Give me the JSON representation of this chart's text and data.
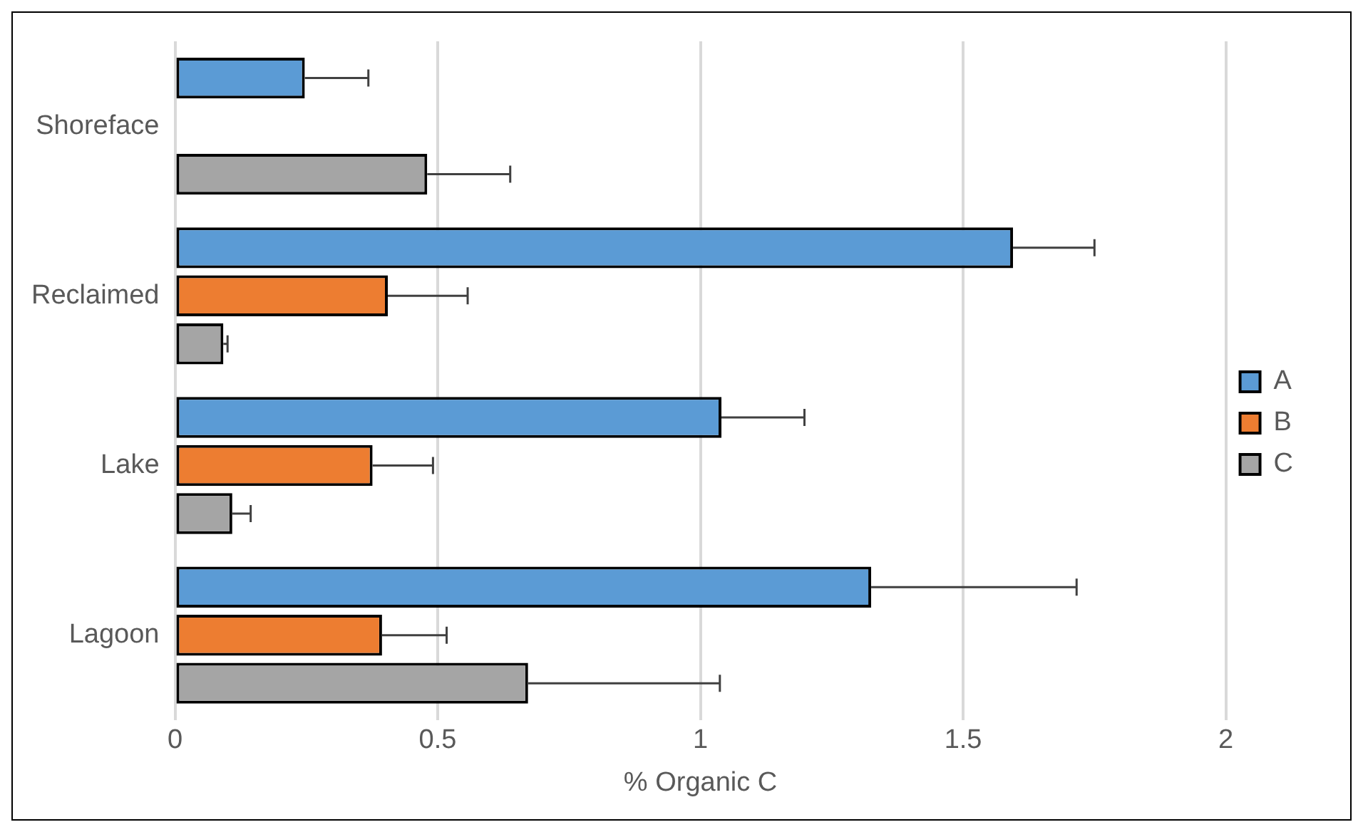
{
  "chart_data": {
    "type": "bar",
    "orientation": "horizontal",
    "xlabel": "% Organic C",
    "categories": [
      "Shoreface",
      "Reclaimed",
      "Lake",
      "Lagoon"
    ],
    "series": [
      {
        "name": "A",
        "color": "#5b9bd5",
        "values": [
          0.247,
          1.595,
          1.04,
          1.325
        ],
        "errors": [
          [
            0.247,
            0.368
          ],
          [
            1.595,
            1.75
          ],
          [
            1.04,
            1.198
          ],
          [
            1.325,
            1.716
          ]
        ]
      },
      {
        "name": "B",
        "color": "#ed7d31",
        "values": [
          null,
          0.405,
          0.376,
          0.394
        ],
        "errors": [
          null,
          [
            0.405,
            0.557
          ],
          [
            0.376,
            0.491
          ],
          [
            0.394,
            0.517
          ]
        ]
      },
      {
        "name": "C",
        "color": "#a5a5a5",
        "values": [
          0.48,
          0.092,
          0.109,
          0.672
        ],
        "errors": [
          [
            0.48,
            0.638
          ],
          [
            0.092,
            0.1
          ],
          [
            0.109,
            0.144
          ],
          [
            0.672,
            1.037
          ]
        ]
      }
    ],
    "xlim": [
      0,
      2
    ],
    "xticks": [
      0,
      0.5,
      1,
      1.5,
      2
    ],
    "grid": "x",
    "legend": "right"
  }
}
